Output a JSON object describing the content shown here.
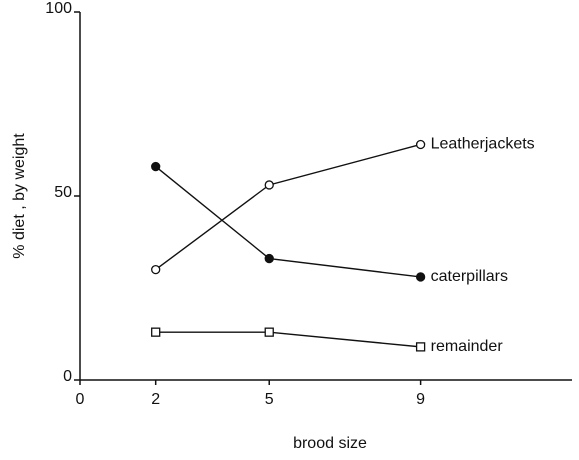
{
  "chart_data": {
    "type": "line",
    "x_label": "brood size",
    "y_label": "% diet , by weight",
    "x": [
      2,
      5,
      9
    ],
    "series": [
      {
        "name": "Leatherjackets",
        "color": "#111111",
        "marker": "circle-open",
        "values": [
          30,
          53,
          64
        ]
      },
      {
        "name": "caterpillars",
        "color": "#111111",
        "marker": "circle-filled",
        "values": [
          58,
          33,
          28
        ]
      },
      {
        "name": "remainder",
        "color": "#111111",
        "marker": "square-open",
        "values": [
          13,
          13,
          9
        ]
      }
    ],
    "xlim": [
      0,
      13
    ],
    "xticks": [
      0,
      2,
      5,
      9
    ],
    "ylim": [
      0,
      100
    ],
    "yticks": [
      0,
      50,
      100
    ],
    "grid": false
  }
}
